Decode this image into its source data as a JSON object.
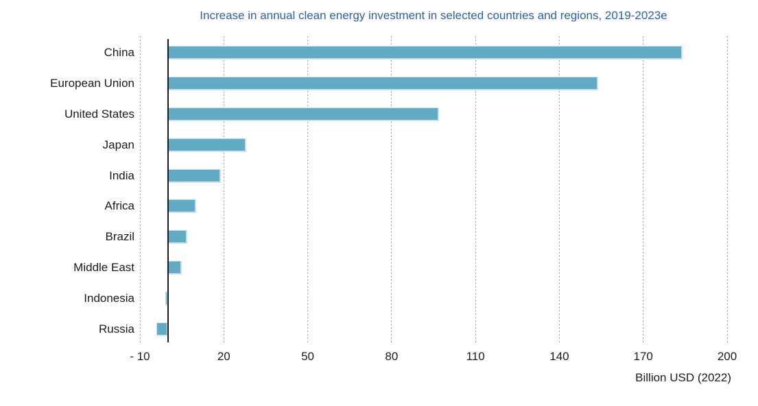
{
  "chart_data": {
    "type": "bar",
    "orientation": "horizontal",
    "title": "Increase in annual clean energy investment in selected countries and regions, 2019-2023e",
    "categories": [
      "China",
      "European Union",
      "United States",
      "Japan",
      "India",
      "Africa",
      "Brazil",
      "Middle East",
      "Indonesia",
      "Russia"
    ],
    "values": [
      184,
      154,
      97,
      28,
      19,
      10,
      7,
      5,
      -1,
      -4
    ],
    "xlabel": "Billion USD (2022)",
    "xlim": [
      -10,
      200
    ],
    "xticks": [
      -10,
      20,
      50,
      80,
      110,
      140,
      170,
      200
    ],
    "xtick_labels": [
      "- 10",
      "20",
      "50",
      "80",
      "110",
      "140",
      "170",
      "200"
    ],
    "grid": "vertical-dotted-gridlines",
    "zero_line": "solid-black-at-0",
    "legend": "none",
    "colors": {
      "bar_fill": "#62abc5",
      "bar_edge": "#c9e2ed",
      "title_text": "#2e5fae",
      "grid_line": "#9e9e9e",
      "zero_line": "#1b1b1b",
      "label_text": "#1a1a1a"
    }
  }
}
